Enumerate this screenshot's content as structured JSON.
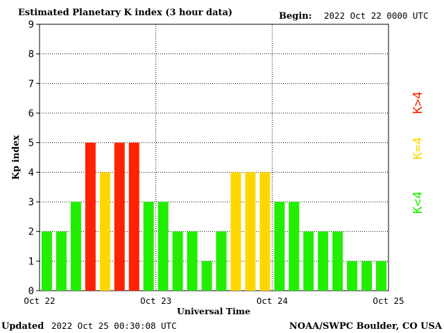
{
  "header": {
    "title": "Estimated Planetary K index (3 hour data)",
    "begin_label": "Begin:",
    "begin_value": "2022 Oct 22 0000 UTC"
  },
  "footer": {
    "updated_label": "Updated",
    "updated_value": "2022 Oct 25 00:30:08 UTC",
    "credit": "NOAA/SWPC Boulder, CO USA"
  },
  "legend": {
    "high": {
      "label": "K>4",
      "color": "#ff2200"
    },
    "mid": {
      "label": "K=4",
      "color": "#ffd700"
    },
    "low": {
      "label": "K<4",
      "color": "#22ee00"
    }
  },
  "chart_data": {
    "type": "bar",
    "title": "Estimated Planetary K index (3 hour data)",
    "xlabel": "Universal Time",
    "ylabel": "Kp index",
    "ylim": [
      0,
      9
    ],
    "yticks": [
      0,
      1,
      2,
      3,
      4,
      5,
      6,
      7,
      8,
      9
    ],
    "xticks": [
      "Oct 22",
      "Oct 23",
      "Oct 24",
      "Oct 25"
    ],
    "interval_hours": 3,
    "grid": "dotted, at each integer Kp and at each day boundary",
    "series": [
      {
        "values": [
          2,
          2,
          3,
          5,
          4,
          5,
          5,
          3,
          3,
          2,
          2,
          1,
          2,
          4,
          4,
          4,
          3,
          3,
          2,
          2,
          2,
          1,
          1,
          1
        ]
      }
    ],
    "color_rule": {
      "below_4": "#22ee00",
      "equal_4": "#ffd700",
      "above_4": "#ff2200"
    }
  }
}
